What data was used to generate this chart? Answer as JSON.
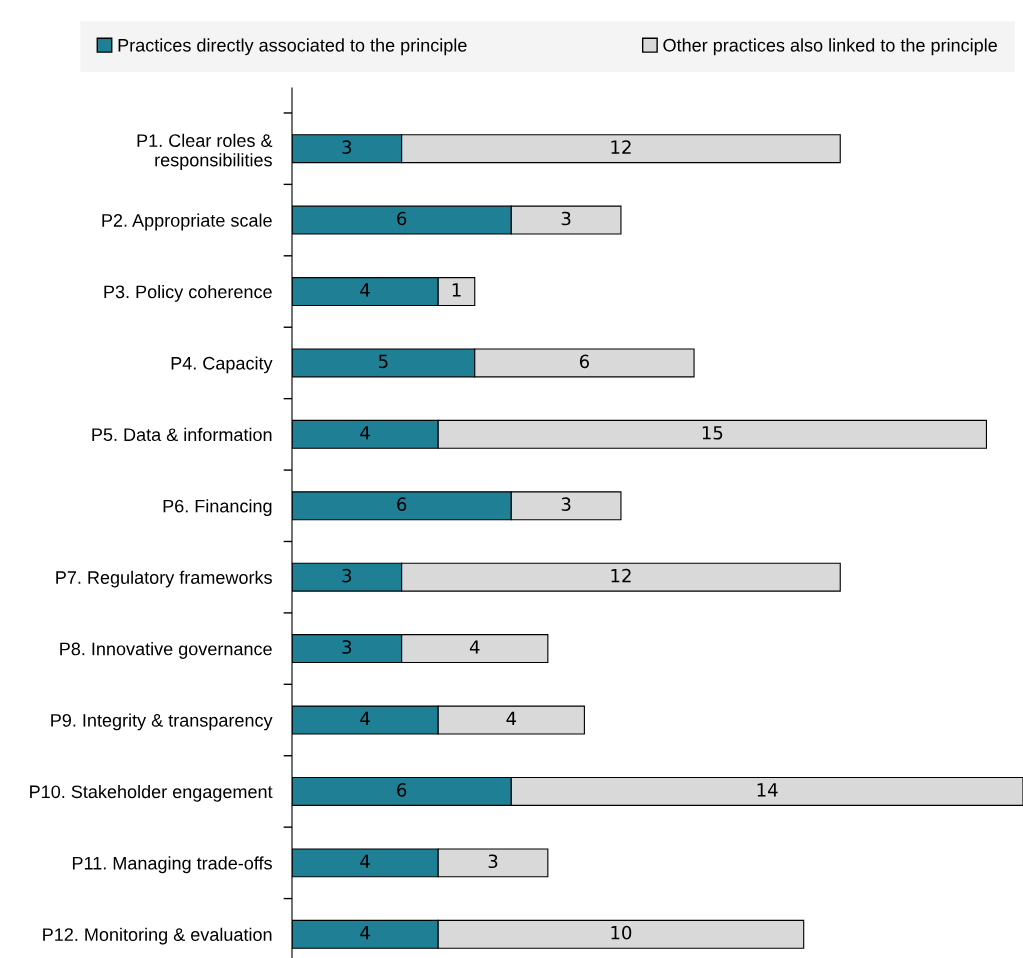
{
  "chart_data": {
    "type": "bar",
    "orientation": "horizontal",
    "stacked": true,
    "data_labels": true,
    "legend": "top",
    "grid": false,
    "categories": [
      "P1. Clear roles &\nresponsibilities",
      "P2. Appropriate scale",
      "P3. Policy coherence",
      "P4. Capacity",
      "P5. Data & information",
      "P6. Financing",
      "P7. Regulatory frameworks",
      "P8. Innovative governance",
      "P9. Integrity & transparency",
      "P10. Stakeholder engagement",
      "P11. Managing trade-offs",
      "P12. Monitoring & evaluation"
    ],
    "series": [
      {
        "name": "Practices directly associated to the principle",
        "color": "#1f7f95",
        "values": [
          3,
          6,
          4,
          5,
          4,
          6,
          3,
          3,
          4,
          6,
          4,
          4
        ]
      },
      {
        "name": "Other practices also linked to the principle",
        "color": "#d9d9d9",
        "values": [
          12,
          3,
          1,
          6,
          15,
          3,
          12,
          4,
          4,
          14,
          3,
          10
        ]
      }
    ]
  }
}
